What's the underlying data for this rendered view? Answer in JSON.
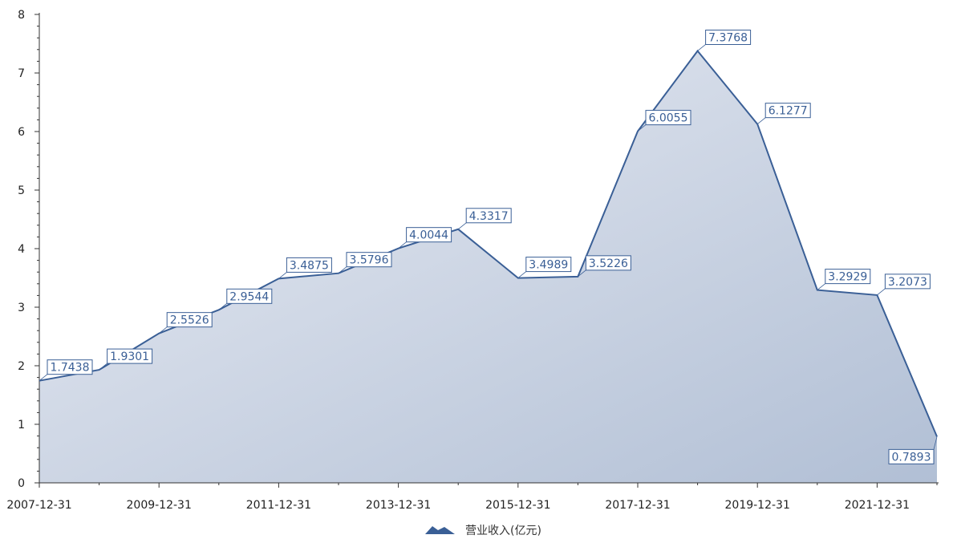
{
  "chart_data": {
    "type": "area",
    "x": [
      "2007-12-31",
      "2008-12-31",
      "2009-12-31",
      "2010-12-31",
      "2011-12-31",
      "2012-12-31",
      "2013-12-31",
      "2014-12-31",
      "2015-12-31",
      "2016-12-31",
      "2017-12-31",
      "2018-12-31",
      "2019-12-31",
      "2020-12-31",
      "2021-12-31",
      "2022-12-31"
    ],
    "series": [
      {
        "name": "营业收入(亿元)",
        "values": [
          1.7438,
          1.9301,
          2.5526,
          2.9544,
          3.4875,
          3.5796,
          4.0044,
          4.3317,
          3.4989,
          3.5226,
          6.0055,
          7.3768,
          6.1277,
          3.2929,
          3.2073,
          0.7893
        ],
        "labels": [
          "1.7438",
          "1.9301",
          "2.5526",
          "2.9544",
          "3.4875",
          "3.5796",
          "4.0044",
          "4.3317",
          "3.4989",
          "3.5226",
          "6.0055",
          "7.3768",
          "6.1277",
          "3.2929",
          "3.2073",
          "0.7893"
        ]
      }
    ],
    "x_tick_labels": [
      "2007-12-31",
      "2009-12-31",
      "2011-12-31",
      "2013-12-31",
      "2015-12-31",
      "2017-12-31",
      "2019-12-31",
      "2021-12-31"
    ],
    "y_tick_labels": [
      "0",
      "1",
      "2",
      "3",
      "4",
      "5",
      "6",
      "7",
      "8"
    ],
    "ylim": [
      0,
      8
    ],
    "grid": false,
    "legend_position": "bottom-center",
    "colors": {
      "line": "#3a5f96",
      "area_light": "#e4e8f1",
      "area_dark": "#b3c1d6",
      "axis": "#333333"
    }
  }
}
